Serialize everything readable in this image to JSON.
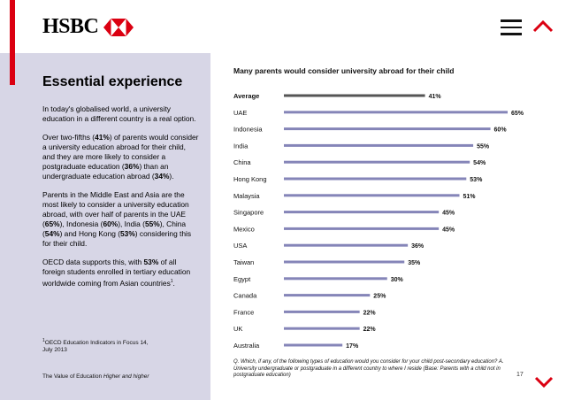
{
  "brand": {
    "name": "HSBC",
    "accent": "#db0011"
  },
  "sidebar": {
    "title": "Essential experience",
    "intro": "In today's globalised world, a university education in a different country is a real option.",
    "para2": {
      "t1": "Over two-fifths (",
      "v1": "41%",
      "t2": ") of parents would consider a university education abroad for their child, and they are more likely to consider a postgraduate education (",
      "v2": "36%",
      "t3": ") than an undergraduate education abroad (",
      "v3": "34%",
      "t4": ")."
    },
    "para3": {
      "t1": "Parents in the Middle East and Asia are the most likely to consider a university education abroad, with over half of parents in the UAE (",
      "v1": "65%",
      "t2": "), Indonesia (",
      "v2": "60%",
      "t3": "), India (",
      "v3": "55%",
      "t4": "), China (",
      "v4": "54%",
      "t5": ") and Hong Kong (",
      "v5": "53%",
      "t6": ") considering this for their child."
    },
    "para4": {
      "t1": "OECD data supports this, with ",
      "v1": "53%",
      "t2": " of all foreign students enrolled in tertiary education worldwide coming from Asian countries",
      "sup": "1",
      "t3": "."
    },
    "footnote": {
      "sup": "1",
      "line1": "OECD Education Indicators in Focus 14,",
      "line2": "July 2013"
    },
    "footer": {
      "text": "The Value of Education",
      "italic": "Higher and higher"
    }
  },
  "nav": {
    "menu_icon": "hamburger-menu-icon",
    "up_icon": "chevron-up-icon",
    "down_icon": "chevron-down-icon"
  },
  "chart_data": {
    "type": "bar",
    "orientation": "horizontal",
    "title": "Many parents would consider university abroad for their child",
    "categories": [
      "Average",
      "UAE",
      "Indonesia",
      "India",
      "China",
      "Hong Kong",
      "Malaysia",
      "Singapore",
      "Mexico",
      "USA",
      "Taiwan",
      "Egypt",
      "Canada",
      "France",
      "UK",
      "Australia"
    ],
    "values": [
      41,
      65,
      60,
      55,
      54,
      53,
      51,
      45,
      45,
      36,
      35,
      30,
      25,
      22,
      22,
      17
    ],
    "value_suffix": "%",
    "highlight_category": "Average",
    "highlight_color": "#555555",
    "bar_color": "#8585b8",
    "xlim": [
      0,
      65
    ],
    "grid": false,
    "footnote": "Q. Which, if any, of the following types of education would you consider for your child post-secondary education? A. University undergraduate or postgraduate in a different country to where I reside (Base: Parents with a child not in postgraduate education)"
  },
  "page": {
    "number": "17"
  }
}
